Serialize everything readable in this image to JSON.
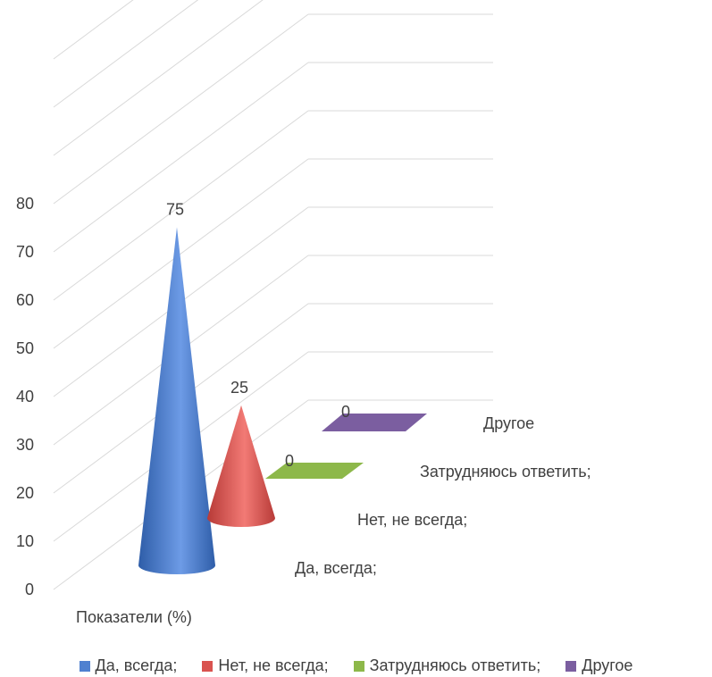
{
  "chart_data": {
    "type": "bar",
    "subtype": "3d-cone",
    "category_label": "Показатели (%)",
    "ylim": [
      0,
      80
    ],
    "yticks": [
      "0",
      "10",
      "20",
      "30",
      "40",
      "50",
      "60",
      "70",
      "80"
    ],
    "series": [
      {
        "name": "Да, всегда;",
        "value": 75,
        "color": "#4F81D0"
      },
      {
        "name": "Нет, не всегда;",
        "value": 25,
        "color": "#D9534F"
      },
      {
        "name": "Затрудняюсь ответить;",
        "value": 0,
        "color": "#8DB84A"
      },
      {
        "name": "Другое",
        "value": 0,
        "color": "#7B5EA0"
      }
    ],
    "data_labels": [
      "75",
      "25",
      "0",
      "0"
    ],
    "grid": true,
    "legend": "bottom"
  }
}
